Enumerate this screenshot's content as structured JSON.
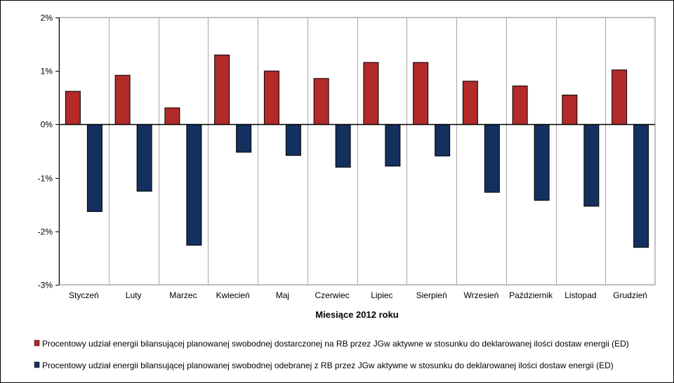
{
  "chart_data": {
    "type": "bar",
    "title": "",
    "xlabel": "Miesiące 2012 roku",
    "ylabel": "",
    "ylim": [
      -3,
      2
    ],
    "y_ticks": [
      2,
      1,
      0,
      -1,
      -2,
      -3
    ],
    "y_tick_labels": [
      "2%",
      "1%",
      "0%",
      "-1%",
      "-2%",
      "-3%"
    ],
    "grid": "vertical",
    "legend_position": "bottom",
    "categories": [
      "Styczeń",
      "Luty",
      "Marzec",
      "Kwiecień",
      "Maj",
      "Czerwiec",
      "Lipiec",
      "Sierpień",
      "Wrzesień",
      "Październik",
      "Listopad",
      "Grudzień"
    ],
    "series": [
      {
        "name": "Procentowy udział energii bilansującej planowanej swobodnej dostarczonej na RB przez JGw aktywne w stosunku do deklarowanej ilości dostaw energii (ED)",
        "color": "#b22a29",
        "values": [
          0.62,
          0.92,
          0.31,
          1.3,
          1.0,
          0.86,
          1.16,
          1.16,
          0.81,
          0.72,
          0.55,
          1.02
        ]
      },
      {
        "name": "Procentowy udział energii bilansującej planowanej swobodnej odebranej z RB przez JGw aktywne w stosunku do deklarowanej ilości dostaw energii (ED)",
        "color": "#14305e",
        "values": [
          -1.63,
          -1.25,
          -2.26,
          -0.52,
          -0.58,
          -0.8,
          -0.78,
          -0.59,
          -1.27,
          -1.42,
          -1.53,
          -2.3
        ]
      }
    ]
  }
}
